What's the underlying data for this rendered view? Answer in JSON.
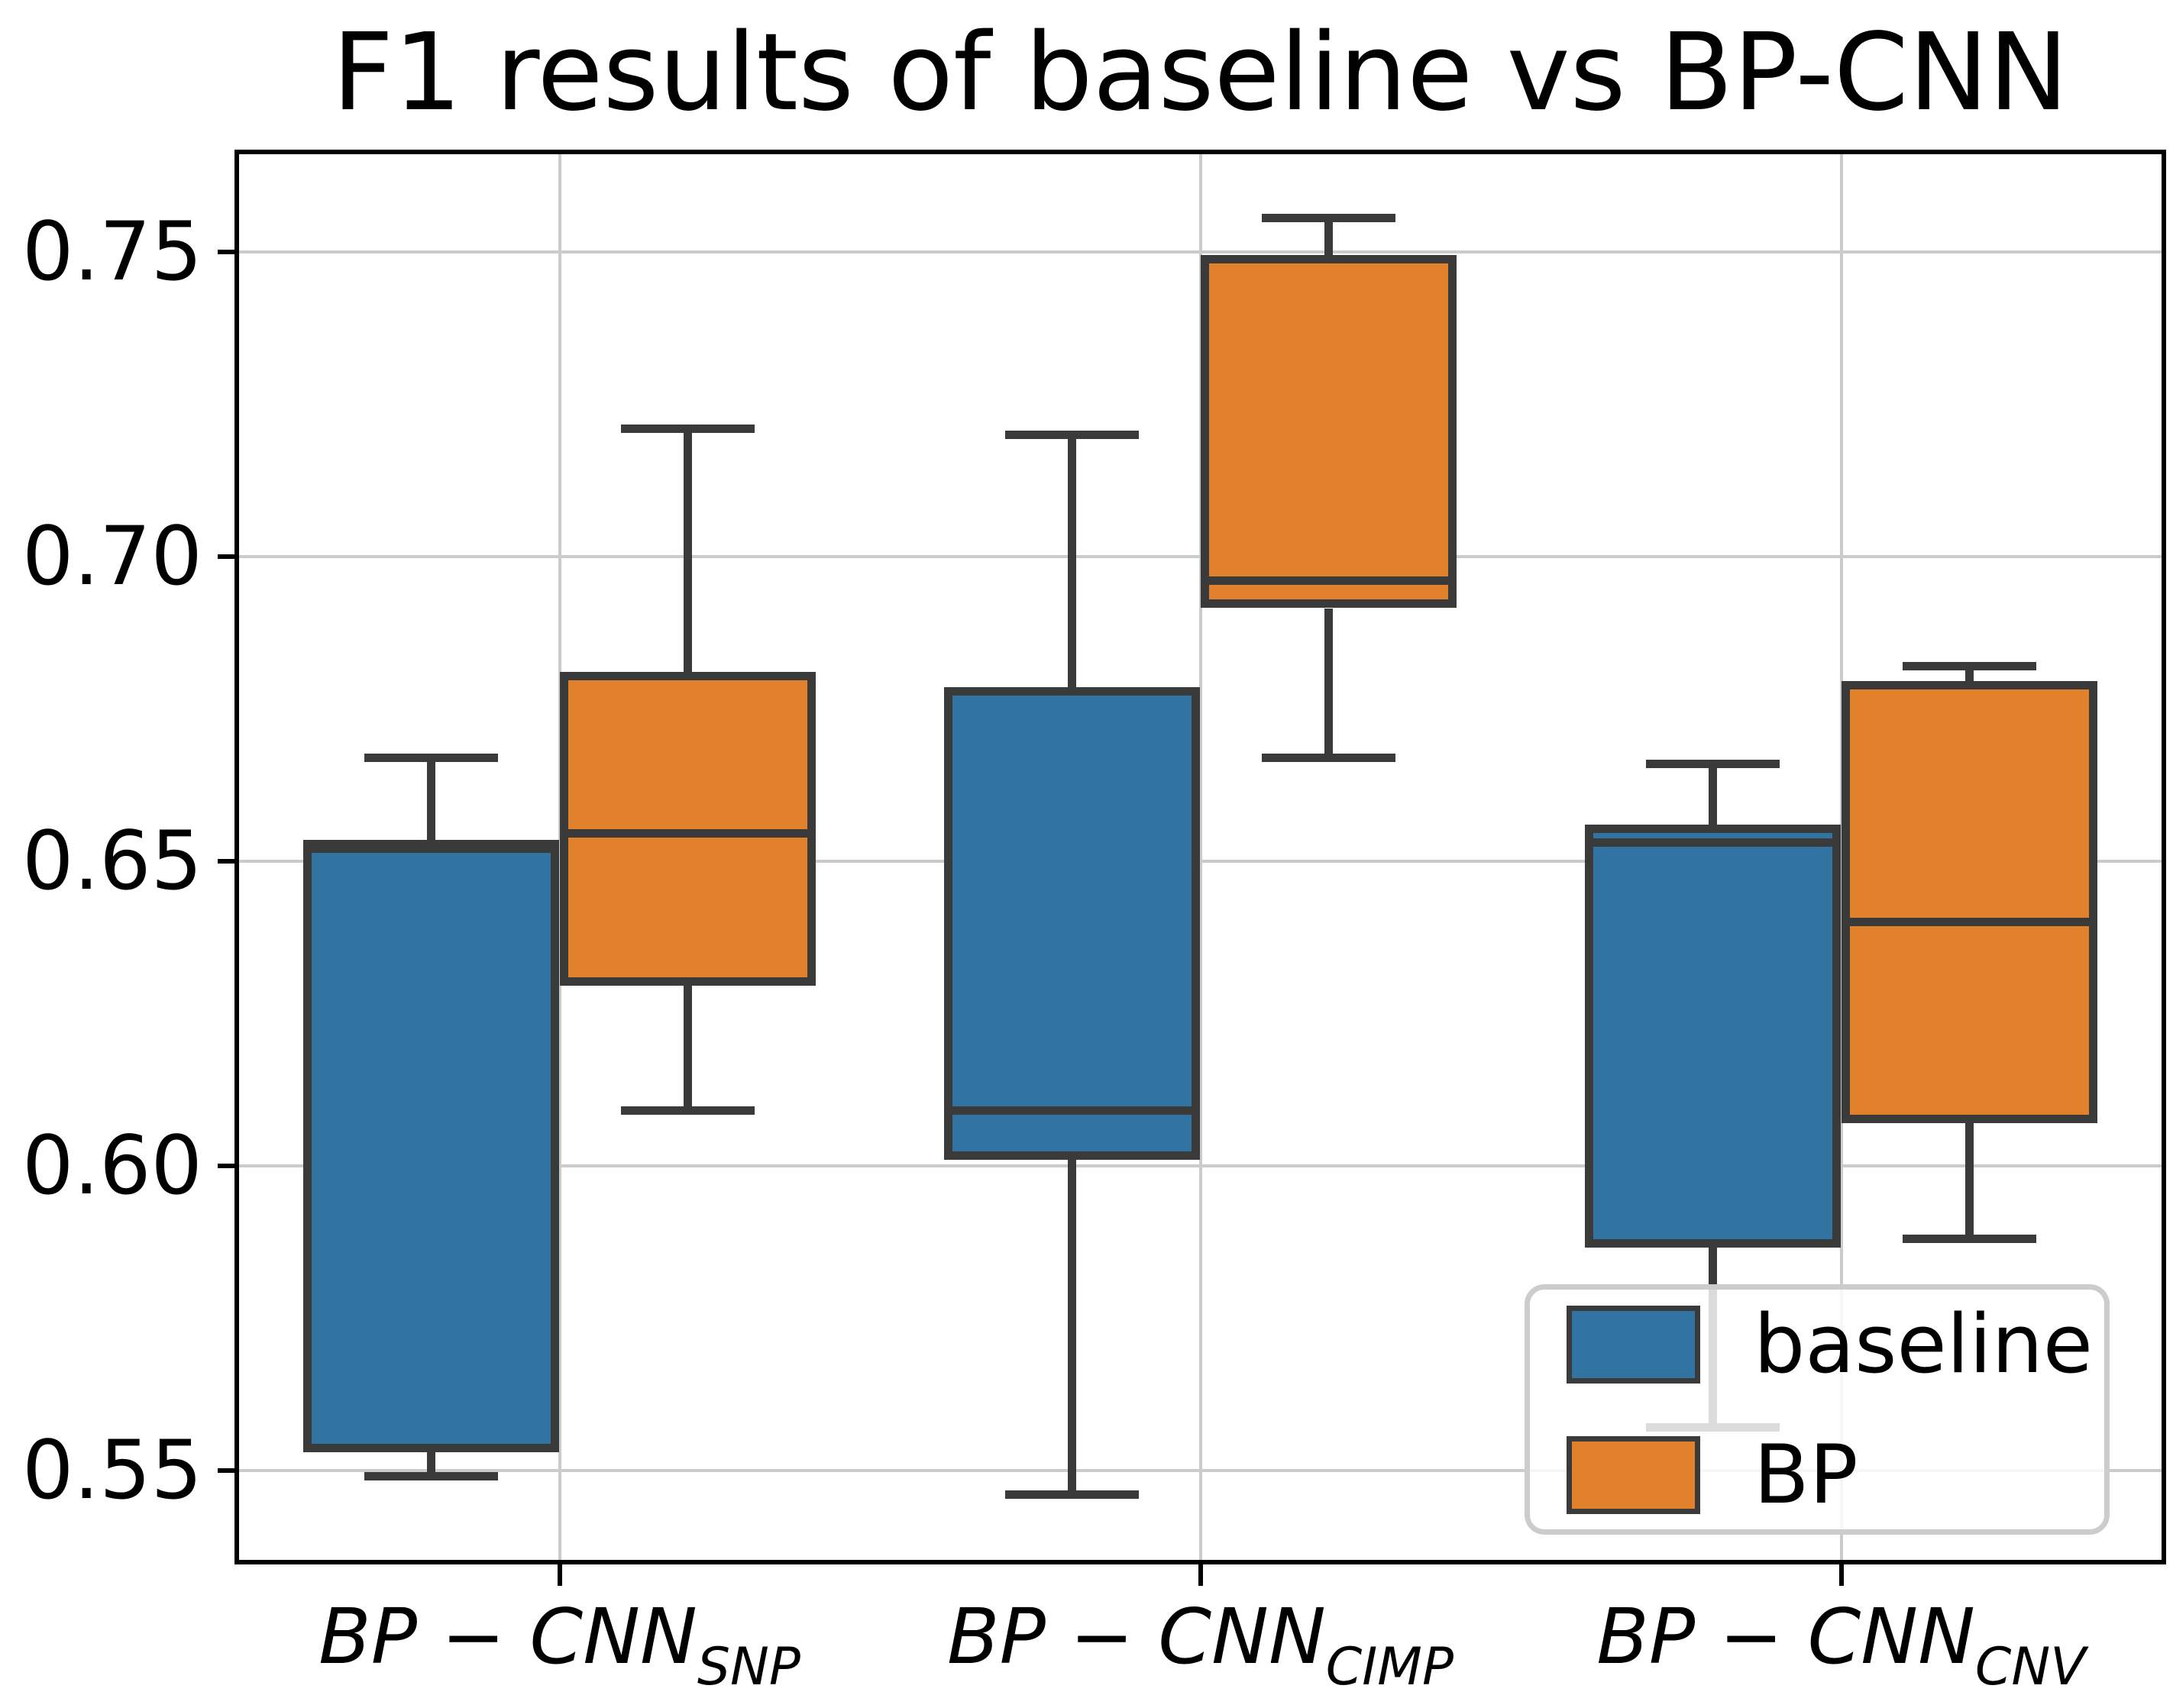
{
  "figure": {
    "title": "F1 results of baseline vs BP-CNN"
  },
  "chart_data": {
    "type": "boxplot",
    "title": "F1 results of baseline vs BP-CNN",
    "grid": true,
    "ylim": [
      0.5353,
      0.766
    ],
    "yticks": [
      0.75,
      0.7,
      0.65,
      0.6,
      0.55
    ],
    "ytick_labels": [
      "0.75",
      "0.70",
      "0.65",
      "0.60",
      "0.55"
    ],
    "categories": [
      {
        "main": "BP − CNN",
        "sub": "SNP"
      },
      {
        "main": "BP − CNN",
        "sub": "CIMP"
      },
      {
        "main": "BP − CNN",
        "sub": "CNV"
      }
    ],
    "series": [
      {
        "name": "baseline",
        "color": "#3274A1",
        "boxes": [
          {
            "whislo": 0.549,
            "q1": 0.553,
            "med": 0.652,
            "q3": 0.6535,
            "whishi": 0.667
          },
          {
            "whislo": 0.546,
            "q1": 0.601,
            "med": 0.609,
            "q3": 0.6785,
            "whishi": 0.72
          },
          {
            "whislo": 0.557,
            "q1": 0.5865,
            "med": 0.653,
            "q3": 0.656,
            "whishi": 0.666
          }
        ]
      },
      {
        "name": "BP",
        "color": "#E1812C",
        "boxes": [
          {
            "whislo": 0.609,
            "q1": 0.6295,
            "med": 0.6545,
            "q3": 0.681,
            "whishi": 0.721
          },
          {
            "whislo": 0.667,
            "q1": 0.6915,
            "med": 0.696,
            "q3": 0.7495,
            "whishi": 0.7555
          },
          {
            "whislo": 0.588,
            "q1": 0.607,
            "med": 0.64,
            "q3": 0.6795,
            "whishi": 0.682
          }
        ]
      }
    ],
    "legend": {
      "position": "lower right",
      "entries": [
        "baseline",
        "BP"
      ]
    },
    "style": {
      "box_edge": "#3A3A3A",
      "grid_color": "#CBCBCB",
      "spine_color": "#000000",
      "legend_border": "#CCCCCC",
      "baseline_color": "#3274A1",
      "bp_color": "#E1812C"
    }
  }
}
